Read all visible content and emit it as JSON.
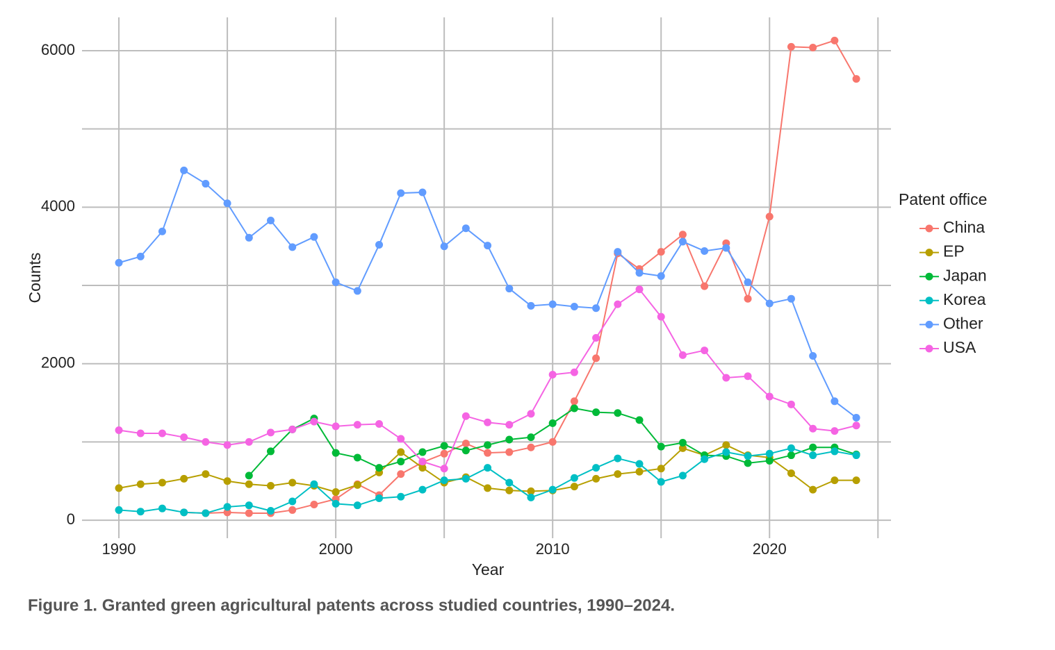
{
  "chart_data": {
    "type": "line",
    "caption": "Figure 1. Granted green agricultural patents across studied countries, 1990–2024.",
    "x_label": "Year",
    "y_label": "Counts",
    "legend_title": "Patent office",
    "legend_position": "right",
    "grid": true,
    "xlim": [
      1988.3,
      2025.6
    ],
    "ylim": [
      -230,
      6426
    ],
    "xticks": [
      1990,
      2000,
      2010,
      2020
    ],
    "xminor": [
      1995,
      2005,
      2015,
      2025
    ],
    "yticks": [
      0,
      2000,
      4000,
      6000
    ],
    "yminor": [
      1000,
      3000,
      5000
    ],
    "x": [
      1990,
      1991,
      1992,
      1993,
      1994,
      1995,
      1996,
      1997,
      1998,
      1999,
      2000,
      2001,
      2002,
      2003,
      2004,
      2005,
      2006,
      2007,
      2008,
      2009,
      2010,
      2011,
      2012,
      2013,
      2014,
      2015,
      2016,
      2017,
      2018,
      2019,
      2020,
      2021,
      2022,
      2023,
      2024
    ],
    "series": [
      {
        "name": "China",
        "color": "#F8766D",
        "values": [
          null,
          null,
          null,
          100,
          90,
          100,
          90,
          90,
          130,
          200,
          270,
          460,
          320,
          590,
          740,
          850,
          980,
          860,
          870,
          930,
          1000,
          1520,
          2070,
          3410,
          3210,
          3430,
          3650,
          2990,
          3540,
          2830,
          3880,
          6050,
          6040,
          6130,
          5640
        ]
      },
      {
        "name": "EP",
        "color": "#B79F00",
        "values": [
          410,
          460,
          480,
          530,
          590,
          500,
          460,
          440,
          480,
          440,
          360,
          450,
          610,
          870,
          670,
          480,
          550,
          410,
          380,
          370,
          380,
          430,
          530,
          590,
          620,
          660,
          920,
          830,
          960,
          830,
          800,
          600,
          390,
          510,
          510
        ]
      },
      {
        "name": "Japan",
        "color": "#00BA38",
        "values": [
          null,
          null,
          null,
          null,
          null,
          null,
          570,
          880,
          1160,
          1300,
          860,
          800,
          670,
          750,
          870,
          950,
          890,
          960,
          1030,
          1060,
          1240,
          1430,
          1380,
          1370,
          1280,
          940,
          990,
          830,
          820,
          730,
          760,
          830,
          930,
          930,
          840
        ]
      },
      {
        "name": "Korea",
        "color": "#00BFC4",
        "values": [
          130,
          110,
          150,
          100,
          90,
          170,
          190,
          120,
          240,
          460,
          210,
          190,
          280,
          300,
          390,
          510,
          530,
          670,
          480,
          290,
          390,
          540,
          670,
          790,
          720,
          490,
          570,
          780,
          870,
          820,
          850,
          920,
          830,
          880,
          830
        ]
      },
      {
        "name": "Other",
        "color": "#619CFF",
        "values": [
          3290,
          3370,
          3690,
          4470,
          4300,
          4050,
          3610,
          3830,
          3490,
          3620,
          3040,
          2930,
          3520,
          4180,
          4190,
          3500,
          3730,
          3510,
          2960,
          2740,
          2760,
          2730,
          2710,
          3430,
          3160,
          3120,
          3560,
          3440,
          3480,
          3040,
          2770,
          2830,
          2100,
          1520,
          1310
        ]
      },
      {
        "name": "USA",
        "color": "#F564E3",
        "values": [
          1150,
          1110,
          1110,
          1060,
          1000,
          960,
          1000,
          1120,
          1160,
          1260,
          1200,
          1220,
          1230,
          1040,
          750,
          660,
          1330,
          1250,
          1220,
          1360,
          1860,
          1890,
          2330,
          2760,
          2950,
          2600,
          2110,
          2170,
          1820,
          1840,
          1580,
          1480,
          1170,
          1140,
          1210
        ]
      }
    ]
  }
}
